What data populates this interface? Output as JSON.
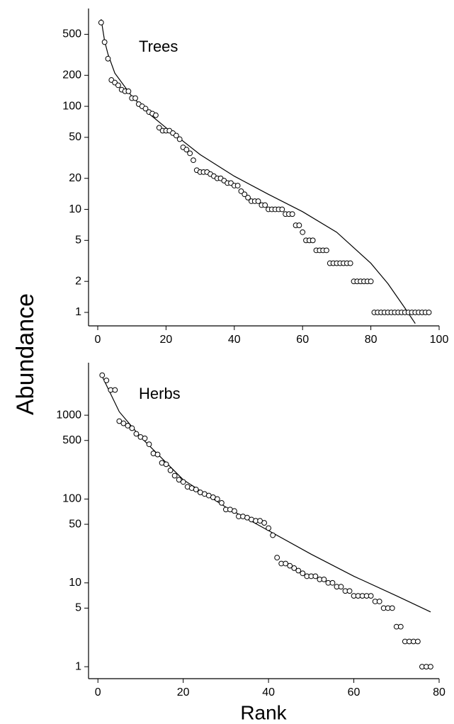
{
  "chart_data": [
    {
      "type": "scatter",
      "label": "Trees",
      "ylabel": "Abundance",
      "log_y": true,
      "xlim": [
        -2.7,
        100
      ],
      "ylim": [
        0.74,
        890
      ],
      "xticks": [
        0,
        20,
        40,
        60,
        80,
        100
      ],
      "yticks": [
        1,
        2,
        5,
        10,
        20,
        50,
        100,
        200,
        500
      ],
      "x": [
        1,
        2,
        3,
        4,
        5,
        6,
        7,
        8,
        9,
        10,
        11,
        12,
        13,
        14,
        15,
        16,
        17,
        18,
        19,
        20,
        21,
        22,
        23,
        24,
        25,
        26,
        27,
        28,
        29,
        30,
        31,
        32,
        33,
        34,
        35,
        36,
        37,
        38,
        39,
        40,
        41,
        42,
        43,
        44,
        45,
        46,
        47,
        48,
        49,
        50,
        51,
        52,
        53,
        54,
        55,
        56,
        57,
        58,
        59,
        60,
        61,
        62,
        63,
        64,
        65,
        66,
        67,
        68,
        69,
        70,
        71,
        72,
        73,
        74,
        75,
        76,
        77,
        78,
        79,
        80,
        81,
        82,
        83,
        84,
        85,
        86,
        87,
        88,
        89,
        90,
        91,
        92,
        93,
        94,
        95,
        96,
        97
      ],
      "values": [
        650,
        420,
        290,
        180,
        170,
        160,
        145,
        140,
        140,
        120,
        120,
        105,
        100,
        95,
        88,
        85,
        82,
        62,
        58,
        58,
        58,
        55,
        52,
        48,
        40,
        38,
        35,
        30,
        24,
        23,
        23,
        23,
        22,
        21,
        20,
        20,
        19,
        18,
        18,
        17,
        17,
        15,
        14,
        13,
        12,
        12,
        12,
        11,
        11,
        10,
        10,
        10,
        10,
        10,
        9,
        9,
        9,
        7,
        7,
        6,
        5,
        5,
        5,
        4,
        4,
        4,
        4,
        3,
        3,
        3,
        3,
        3,
        3,
        3,
        2,
        2,
        2,
        2,
        2,
        2,
        1,
        1,
        1,
        1,
        1,
        1,
        1,
        1,
        1,
        1,
        1,
        1,
        1,
        1,
        1,
        1,
        1
      ],
      "fit": {
        "x": [
          1,
          2,
          3,
          5,
          10,
          15,
          20,
          30,
          40,
          50,
          60,
          70,
          80,
          85,
          90,
          93
        ],
        "values": [
          700,
          430,
          320,
          210,
          125,
          85,
          62,
          34,
          21,
          14,
          9.5,
          6,
          3,
          1.9,
          1.1,
          0.78
        ]
      }
    },
    {
      "type": "scatter",
      "label": "Herbs",
      "xlabel": "Rank",
      "log_y": true,
      "xlim": [
        -2.2,
        80
      ],
      "ylim": [
        0.72,
        4230
      ],
      "xticks": [
        0,
        20,
        40,
        60,
        80
      ],
      "yticks": [
        1,
        5,
        10,
        50,
        100,
        500,
        1000
      ],
      "x": [
        1,
        2,
        3,
        4,
        5,
        6,
        7,
        8,
        9,
        10,
        11,
        12,
        13,
        14,
        15,
        16,
        17,
        18,
        19,
        20,
        21,
        22,
        23,
        24,
        25,
        26,
        27,
        28,
        29,
        30,
        31,
        32,
        33,
        34,
        35,
        36,
        37,
        38,
        39,
        40,
        41,
        42,
        43,
        44,
        45,
        46,
        47,
        48,
        49,
        50,
        51,
        52,
        53,
        54,
        55,
        56,
        57,
        58,
        59,
        60,
        61,
        62,
        63,
        64,
        65,
        66,
        67,
        68,
        69,
        70,
        71,
        72,
        73,
        74,
        75,
        76,
        77,
        78
      ],
      "values": [
        3000,
        2600,
        2000,
        2000,
        850,
        800,
        750,
        700,
        600,
        550,
        530,
        450,
        350,
        340,
        270,
        260,
        220,
        190,
        170,
        160,
        140,
        135,
        130,
        120,
        115,
        110,
        105,
        100,
        90,
        75,
        75,
        72,
        62,
        62,
        60,
        57,
        55,
        55,
        52,
        45,
        37,
        20,
        17,
        17,
        16,
        15,
        14,
        13,
        12,
        12,
        12,
        11,
        11,
        10,
        10,
        9,
        9,
        8,
        8,
        7,
        7,
        7,
        7,
        7,
        6,
        6,
        5,
        5,
        5,
        3,
        3,
        2,
        2,
        2,
        2,
        1,
        1,
        1
      ],
      "fit": {
        "x": [
          1,
          5,
          10,
          20,
          30,
          40,
          50,
          60,
          70,
          78
        ],
        "values": [
          2900,
          1100,
          550,
          170,
          80,
          42,
          22,
          12,
          7,
          4.5
        ]
      }
    }
  ]
}
